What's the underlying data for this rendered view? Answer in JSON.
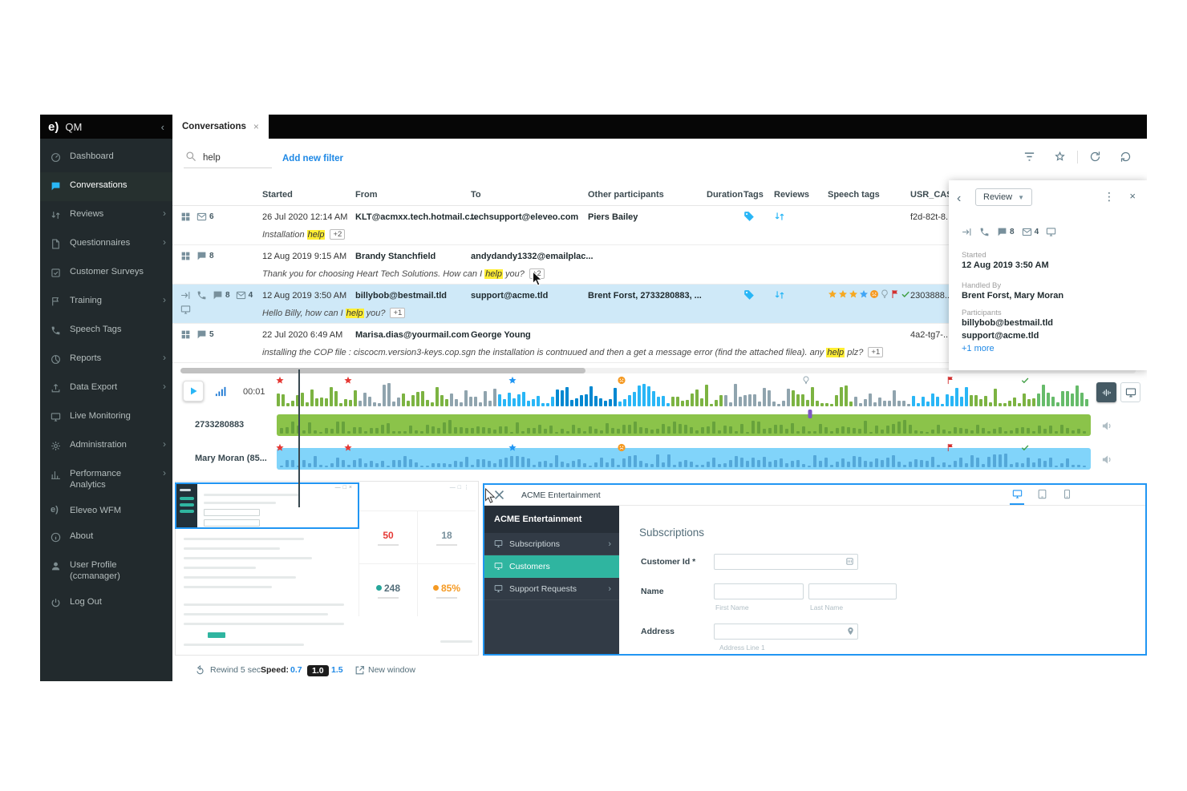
{
  "window": {
    "logo": "e)",
    "app_title": "QM",
    "collapse_icon": "‹"
  },
  "tabbar": {
    "tab": "Conversations",
    "close": "×"
  },
  "sidebar": {
    "items": [
      {
        "label": "Dashboard",
        "icon": "gauge-icon"
      },
      {
        "label": "Conversations",
        "icon": "chat-icon",
        "active": true
      },
      {
        "label": "Reviews",
        "icon": "swap-icon",
        "expand": true
      },
      {
        "label": "Questionnaires",
        "icon": "doc-icon",
        "expand": true
      },
      {
        "label": "Customer Surveys",
        "icon": "survey-icon"
      },
      {
        "label": "Training",
        "icon": "training-icon",
        "expand": true
      },
      {
        "label": "Speech Tags",
        "icon": "phone-tag-icon"
      },
      {
        "label": "Reports",
        "icon": "pie-icon",
        "expand": true
      },
      {
        "label": "Data Export",
        "icon": "export-icon",
        "expand": true
      },
      {
        "label": "Live Monitoring",
        "icon": "monitor-icon"
      },
      {
        "label": "Administration",
        "icon": "gear-icon",
        "expand": true
      },
      {
        "label": "Performance Analytics",
        "icon": "chart-icon",
        "expand": true
      },
      {
        "label": "Eleveo WFM",
        "icon": "eleveo-icon"
      },
      {
        "label": "About",
        "icon": "info-icon"
      },
      {
        "label": "User Profile (ccmanager)",
        "icon": "person-icon"
      },
      {
        "label": "Log Out",
        "icon": "power-icon"
      }
    ]
  },
  "toolbar": {
    "search_value": "help",
    "add_filter_label": "Add new filter"
  },
  "table": {
    "columns": [
      "Started",
      "From",
      "To",
      "Other participants",
      "Duration",
      "Tags",
      "Reviews",
      "Speech tags",
      "USR_CAS"
    ],
    "rows": [
      {
        "icons": [
          {
            "type": "grid"
          },
          {
            "type": "mail",
            "count": "6"
          }
        ],
        "started": "26 Jul 2020 12:14 AM",
        "from": "KLT@acmxx.tech.hotmail.c...",
        "to": "techsupport@eleveo.com",
        "other": "Piers Bailey",
        "has_tag": true,
        "has_review": true,
        "usr": "f2d-82t-8...",
        "preview": {
          "pre": "Installation ",
          "hl": "help",
          "post": "",
          "badge": "+2"
        }
      },
      {
        "icons": [
          {
            "type": "grid"
          },
          {
            "type": "chat",
            "count": "8"
          }
        ],
        "started": "12 Aug 2019 9:15 AM",
        "from": "Brandy Stanchfield",
        "to": "andydandy1332@emailplac...",
        "other": "",
        "usr": "",
        "preview": {
          "pre": "Thank you for choosing Heart Tech Solutions. How can I ",
          "hl": "help",
          "post": " you?",
          "badge": "+2"
        }
      },
      {
        "selected": true,
        "icons": [
          {
            "type": "transfer"
          },
          {
            "type": "phone"
          },
          {
            "type": "chat",
            "count": "8"
          },
          {
            "type": "mail",
            "count": "4"
          },
          {
            "type": "monitor"
          }
        ],
        "started": "12 Aug 2019 3:50 AM",
        "from": "billybob@bestmail.tld",
        "to": "support@acme.tld",
        "other": "Brent Forst, 2733280883, ...",
        "has_tag": true,
        "has_review": true,
        "speech_tags": [
          {
            "type": "star",
            "color": "#f6a821"
          },
          {
            "type": "star",
            "color": "#f6a821"
          },
          {
            "type": "star",
            "color": "#f6a821"
          },
          {
            "type": "star",
            "color": "#42a5f5"
          },
          {
            "type": "frown",
            "color": "#f59a23"
          },
          {
            "type": "bulb",
            "color": "#90a4ae"
          },
          {
            "type": "flag",
            "color": "#d32f2f"
          },
          {
            "type": "check",
            "color": "#43a047"
          }
        ],
        "usr": "2303888...",
        "preview": {
          "pre": "Hello Billy, how can I ",
          "hl": "help",
          "post": " you?",
          "badge": "+1"
        }
      },
      {
        "icons": [
          {
            "type": "grid"
          },
          {
            "type": "chat",
            "count": "5"
          }
        ],
        "started": "22 Jul 2020 6:49 AM",
        "from": "Marisa.dias@yourmail.com",
        "to": "George Young",
        "other": "",
        "usr": "4a2-tg7-...",
        "preview": {
          "pre": "installing the COP file : ciscocm.version3-keys.cop.sgn the installation is contnuued and then a get a message error (find the attached filea). any ",
          "hl": "help",
          "post": " plz?",
          "badge": "+1"
        }
      }
    ]
  },
  "detail_panel": {
    "dropdown_label": "Review",
    "channels": [
      {
        "type": "transfer"
      },
      {
        "type": "phone"
      },
      {
        "type": "chat",
        "count": "8"
      },
      {
        "type": "mail",
        "count": "4"
      },
      {
        "type": "monitor"
      }
    ],
    "started_label": "Started",
    "started_value": "12 Aug 2019 3:50 AM",
    "handled_label": "Handled By",
    "handled_value": "Brent Forst, Mary Moran",
    "participants_label": "Participants",
    "participants": [
      "billybob@bestmail.tld",
      "support@acme.tld"
    ],
    "more_link": "+1 more"
  },
  "player": {
    "time": "00:01",
    "markers": [
      {
        "type": "star",
        "color": "#e53935",
        "pos": 0.004
      },
      {
        "type": "star",
        "color": "#e53935",
        "pos": 0.088
      },
      {
        "type": "star",
        "color": "#2196f3",
        "pos": 0.29
      },
      {
        "type": "frown",
        "color": "#f59a23",
        "pos": 0.424
      },
      {
        "type": "bulb",
        "color": "#90a4ae",
        "pos": 0.65
      },
      {
        "type": "flag",
        "color": "#d32f2f",
        "pos": 0.828
      },
      {
        "type": "check",
        "color": "#43a047",
        "pos": 0.919
      }
    ],
    "tracks": [
      {
        "label": "2733280883",
        "color": "#8bc34a",
        "inner": "rgba(27,94,32,0.32)",
        "markers": [
          {
            "type": "dot",
            "color": "#7e57c2",
            "pos": 0.655
          }
        ]
      },
      {
        "label": "Mary Moran (85...",
        "color": "#81d4fa",
        "inner": "rgba(1,87,155,0.35)",
        "markers": [
          {
            "type": "star",
            "color": "#e53935",
            "pos": 0.004
          },
          {
            "type": "star",
            "color": "#e53935",
            "pos": 0.088
          },
          {
            "type": "star",
            "color": "#2196f3",
            "pos": 0.29
          },
          {
            "type": "frown",
            "color": "#f59a23",
            "pos": 0.424
          },
          {
            "type": "flag",
            "color": "#d32f2f",
            "pos": 0.828
          },
          {
            "type": "check",
            "color": "#43a047",
            "pos": 0.919
          }
        ]
      }
    ]
  },
  "recording": {
    "stats": [
      {
        "value": "50",
        "color": "#e53935"
      },
      {
        "value": "18",
        "color": "#78909c"
      },
      {
        "value": "248",
        "color": "#546e7a",
        "dot": "#26a69a"
      },
      {
        "value": "85%",
        "color": "#f59a23",
        "dot": "#f59a23"
      }
    ]
  },
  "acme": {
    "title": "ACME Entertainment",
    "sidebar_title": "ACME Entertainment",
    "menu": [
      {
        "label": "Subscriptions",
        "expand": true
      },
      {
        "label": "Customers",
        "active": true
      },
      {
        "label": "Support Requests",
        "expand": true
      }
    ],
    "heading": "Subscriptions",
    "form": {
      "customer_id_label": "Customer Id *",
      "name_label": "Name",
      "first_name_helper": "First Name",
      "last_name_helper": "Last Name",
      "address_label": "Address",
      "address_helper": "Address Line 1"
    }
  },
  "controls": {
    "rewind": "Rewind 5 sec",
    "speed_label": "Speed:",
    "speeds": [
      "0.7",
      "1.0",
      "1.5"
    ],
    "active_speed": "1.0",
    "new_window": "New window"
  },
  "colors": {
    "accent_blue": "#2196f3",
    "icon_blue": "#29b6f6",
    "teal": "#26a69a",
    "waveform_green": "#7cb342",
    "waveform_blue": "#29b6f6",
    "waveform_gray": "#90a4ae",
    "track_green": "#8bc34a",
    "track_blue": "#81d4fa",
    "selected_row": "#cfe9f8",
    "highlight_yellow": "#ffee33"
  }
}
